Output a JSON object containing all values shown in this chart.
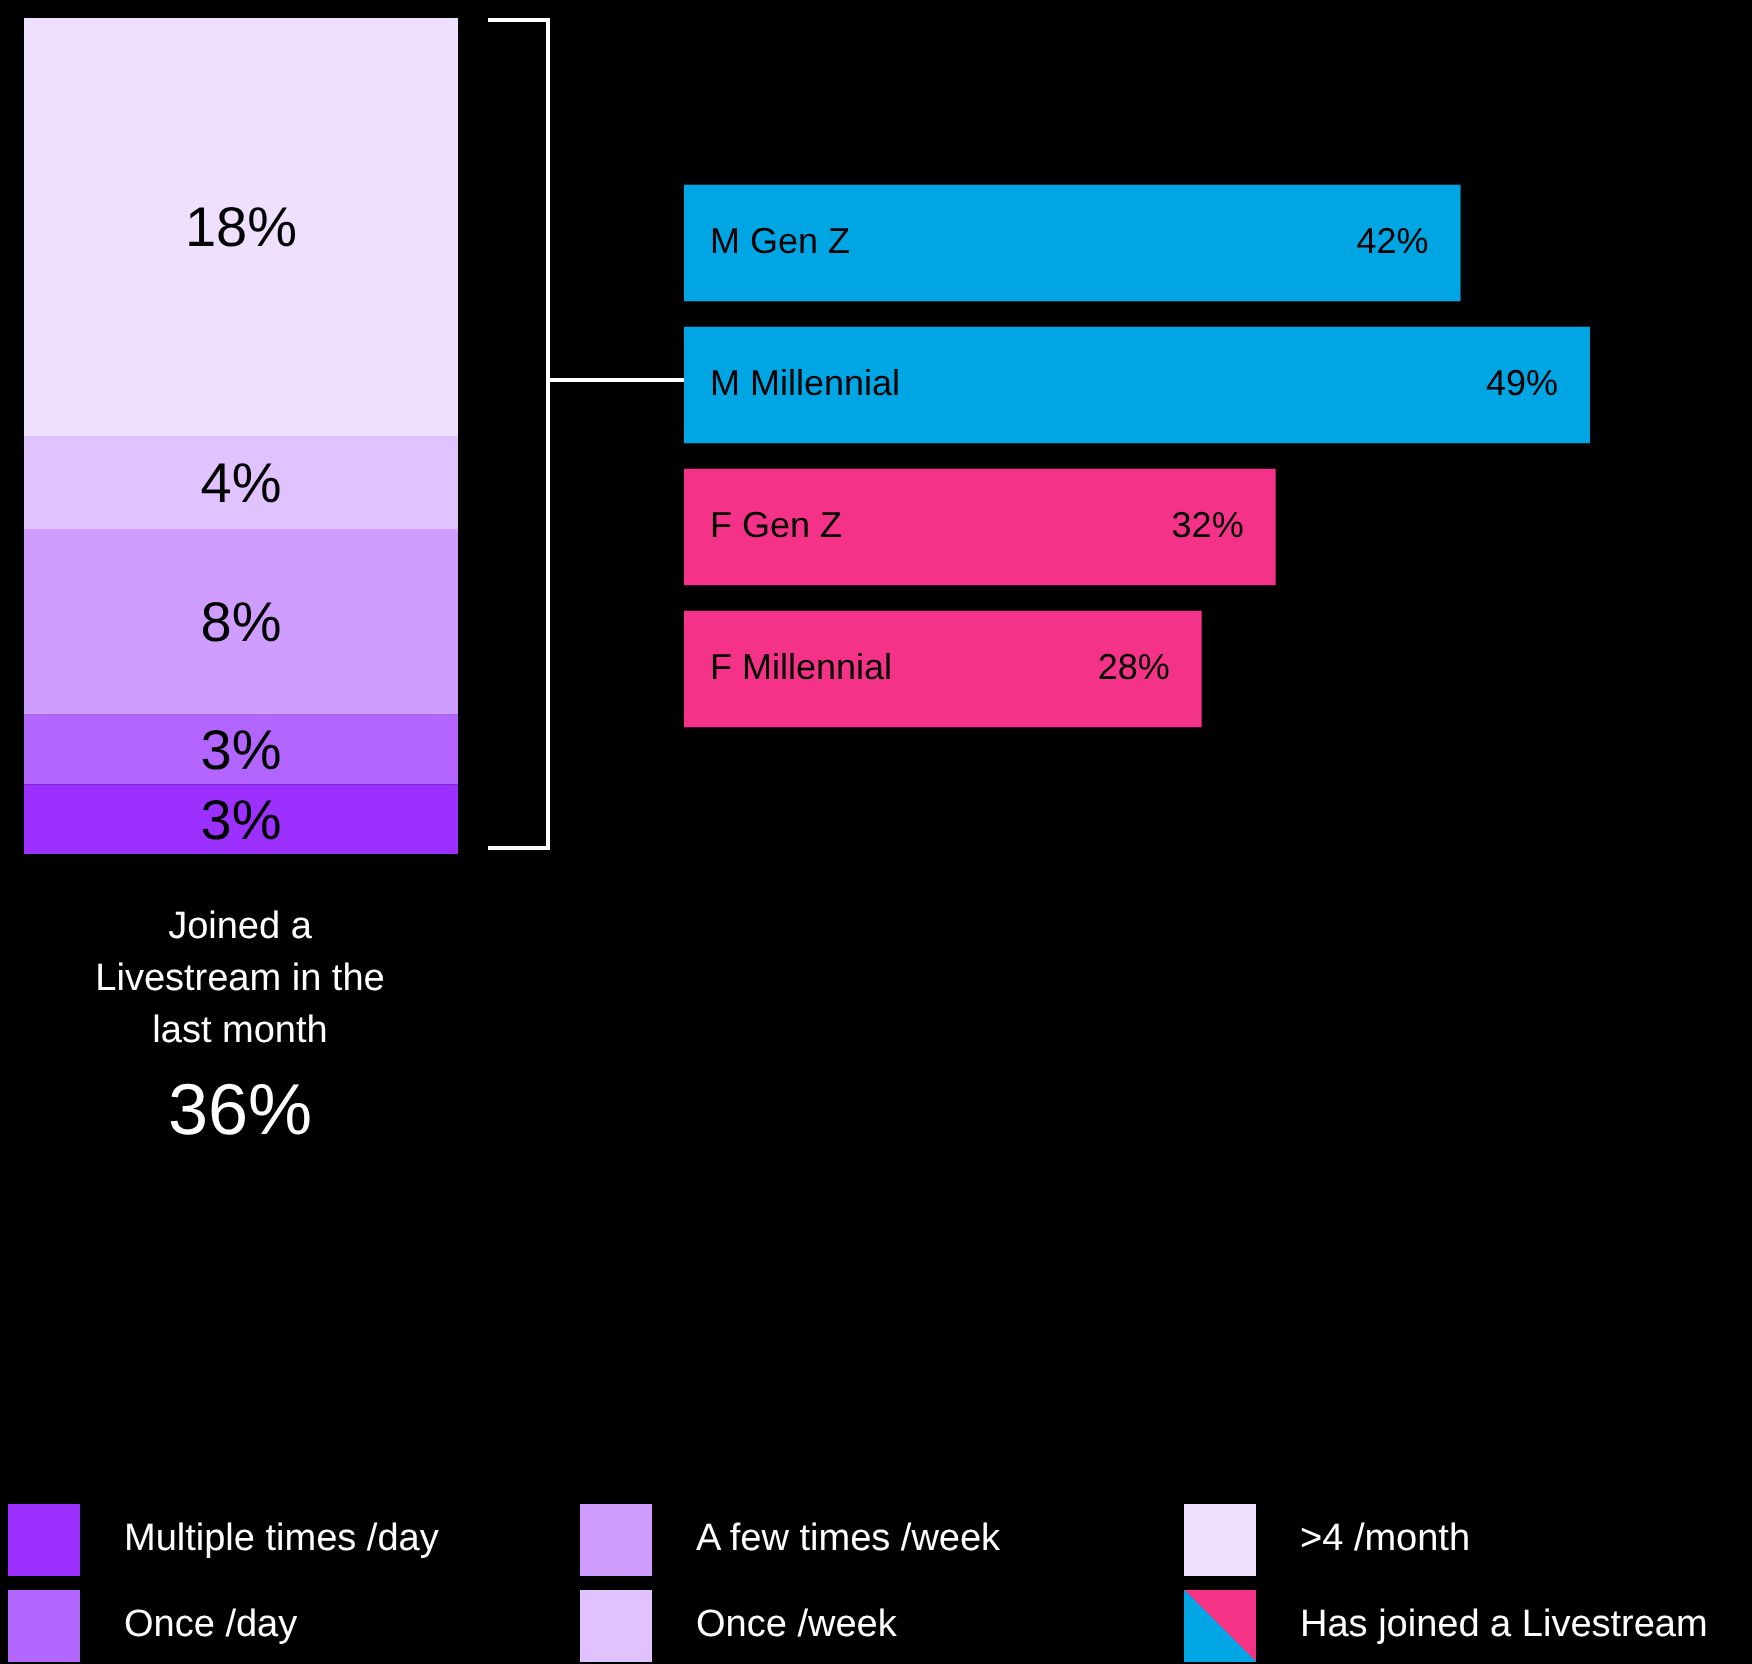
{
  "chart_data": [
    {
      "type": "bar",
      "stacked": true,
      "categories": [
        null
      ],
      "series": [
        {
          "name": "Multiple times /day",
          "color": "#9b30ff",
          "values": [
            3
          ],
          "value_labels": [
            "3%"
          ]
        },
        {
          "name": "Once /day",
          "color": "#b366ff",
          "values": [
            3
          ],
          "value_labels": [
            "3%"
          ]
        },
        {
          "name": "A few times /week",
          "color": "#cf9dff",
          "values": [
            8
          ],
          "value_labels": [
            "8%"
          ]
        },
        {
          "name": "Once /week",
          "color": "#e0c2ff",
          "values": [
            4
          ],
          "value_labels": [
            "4%"
          ]
        },
        {
          "name": ">4 /month",
          "color": "#f0e0ff",
          "values": [
            18
          ],
          "value_labels": [
            "18%"
          ]
        }
      ],
      "legend": "bottom",
      "tick_labels": false,
      "annotations": [
        "Joined a Livestream in the last month",
        "36%"
      ]
    },
    {
      "type": "bar",
      "orientation": "horizontal",
      "categories": [
        "M Gen Z",
        "M Millennial",
        "F Gen Z",
        "F Millennial"
      ],
      "series": [
        {
          "name": "Has joined a Livestream",
          "colors": [
            "#00a5e3",
            "#00a5e3",
            "#f43287",
            "#f43287"
          ],
          "values": [
            42,
            49,
            32,
            28
          ],
          "value_labels": [
            "42%",
            "49%",
            "32%",
            "28%"
          ]
        }
      ],
      "legend": "bottom",
      "tick_labels": "y"
    }
  ]
}
